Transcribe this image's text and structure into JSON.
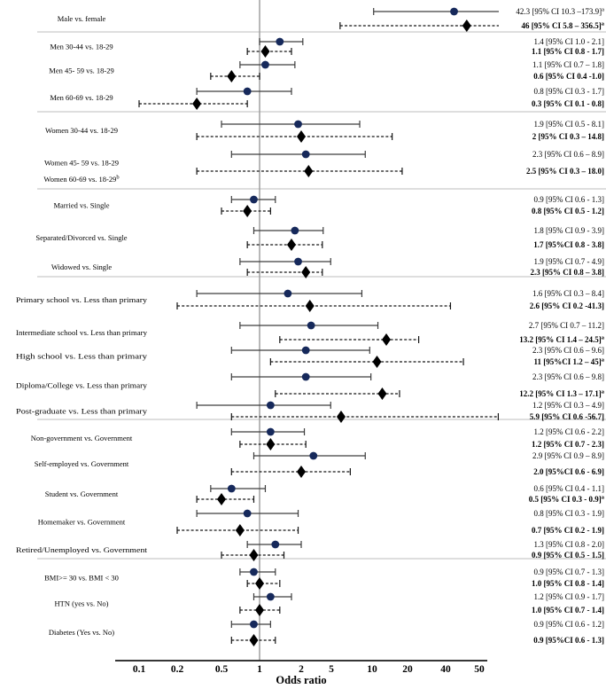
{
  "chart_data": {
    "type": "forest",
    "title": "",
    "xlabel": "Odds ratio",
    "x_scale": "log",
    "x_range": [
      0.1,
      50
    ],
    "x_tick_labels": [
      "0.1",
      "0.2",
      "0.5",
      "1",
      "2",
      "5",
      "10",
      "20",
      "40",
      "50"
    ],
    "reference_value": 1,
    "legend": "none",
    "grid": "off",
    "series": [
      {
        "name": "estimate-1",
        "marker": "circle",
        "line": "solid"
      },
      {
        "name": "estimate-2",
        "marker": "diamond",
        "line": "dashed",
        "text_style": "bold"
      }
    ],
    "colors": {
      "circle_marker": "#16295b",
      "diamond_marker": "#000000",
      "solid_ci_line": "#3d3d3d",
      "dashed_ci_line": "#141414",
      "reference_line": "#9a9a9a",
      "separator": "#c9c9c9",
      "axis": "#1a1a1a"
    },
    "groups": [
      {
        "rows": [
          {
            "label": "Male vs. female",
            "solid": {
              "est": 42.3,
              "lo": 10.3,
              "hi": 173.9,
              "text": "42.3 [95% CI 10.3 –173.9]",
              "sup": "a"
            },
            "dashed": {
              "est": 46,
              "lo": 5.8,
              "hi": 356.5,
              "text": "46 [95% CI 5.8 – 356.5]",
              "sup": "a"
            }
          }
        ]
      },
      {
        "rows": [
          {
            "label": "Men 30-44 vs. 18-29",
            "solid": {
              "est": 1.4,
              "lo": 1.0,
              "hi": 2.1,
              "text": "1.4 [95% CI 1.0 - 2.1]"
            },
            "dashed": {
              "est": 1.1,
              "lo": 0.8,
              "hi": 1.7,
              "text": "1.1 [95% CI 0.8 - 1.7]"
            }
          },
          {
            "label": "Men 45- 59 vs. 18-29",
            "solid": {
              "est": 1.1,
              "lo": 0.7,
              "hi": 1.8,
              "text": "1.1 [95% CI 0.7 – 1.8]"
            },
            "dashed": {
              "est": 0.6,
              "lo": 0.4,
              "hi": 1.0,
              "text": "0.6 [95% CI 0.4 -1.0]"
            }
          },
          {
            "label": "Men 60-69 vs. 18-29",
            "solid": {
              "est": 0.8,
              "lo": 0.3,
              "hi": 1.7,
              "text": "0.8 [95% CI 0.3 - 1.7]"
            },
            "dashed": {
              "est": 0.3,
              "lo": 0.1,
              "hi": 0.8,
              "text": "0.3 [95% CI 0.1 - 0.8]"
            }
          }
        ]
      },
      {
        "rows": [
          {
            "label": "Women 30-44 vs. 18-29",
            "solid": {
              "est": 1.9,
              "lo": 0.5,
              "hi": 8.1,
              "text": "1.9 [95% CI 0.5 - 8.1]"
            },
            "dashed": {
              "est": 2,
              "lo": 0.3,
              "hi": 14.8,
              "text": "2 [95% CI 0.3 – 14.8]"
            }
          },
          {
            "label": "Women 45- 59 vs. 18-29",
            "solid": {
              "est": 2.3,
              "lo": 0.6,
              "hi": 8.9,
              "text": "2.3 [95% CI 0.6 – 8.9]"
            },
            "dashed": {
              "est": 2.5,
              "lo": 0.3,
              "hi": 18.0,
              "text": "2.5 [95% CI 0.3 – 18.0]"
            }
          },
          {
            "label": "Women 60-69 vs. 18-29",
            "label_sup": "b"
          }
        ]
      },
      {
        "rows": [
          {
            "label": "Married vs. Single",
            "solid": {
              "est": 0.9,
              "lo": 0.6,
              "hi": 1.3,
              "text": "0.9 [95% CI 0.6 - 1.3]"
            },
            "dashed": {
              "est": 0.8,
              "lo": 0.5,
              "hi": 1.2,
              "text": "0.8 [95% CI 0.5 - 1.2]"
            }
          },
          {
            "label": "Separated/Divorced vs. Single",
            "solid": {
              "est": 1.8,
              "lo": 0.9,
              "hi": 3.9,
              "text": "1.8 [95% CI 0.9 - 3.9]"
            },
            "dashed": {
              "est": 1.7,
              "lo": 0.8,
              "hi": 3.8,
              "text": "1.7 [95%CI 0.8 - 3.8]"
            }
          },
          {
            "label": "Widowed vs. Single",
            "solid": {
              "est": 1.9,
              "lo": 0.7,
              "hi": 4.9,
              "text": "1.9 [95% CI 0.7 - 4.9]"
            },
            "dashed": {
              "est": 2.3,
              "lo": 0.8,
              "hi": 3.8,
              "text": "2.3 [95% CI 0.8 – 3.8]"
            }
          }
        ]
      },
      {
        "rows": [
          {
            "label": "Primary school vs. Less than primary",
            "solid": {
              "est": 1.6,
              "lo": 0.3,
              "hi": 8.4,
              "text": "1.6 [95% CI 0.3 – 8.4]"
            },
            "dashed": {
              "est": 2.6,
              "lo": 0.2,
              "hi": 41.3,
              "text": "2.6 [95% CI 0.2 -41.3]"
            }
          },
          {
            "label": "Intermediate school vs. Less than primary",
            "solid": {
              "est": 2.7,
              "lo": 0.7,
              "hi": 11.2,
              "text": "2.7 [95% CI 0.7 – 11.2]"
            },
            "dashed": {
              "est": 13.2,
              "lo": 1.4,
              "hi": 24.5,
              "text": "13.2 [95% CI 1.4 – 24.5]",
              "sup": "a"
            }
          },
          {
            "label": "High school vs. Less than primary",
            "solid": {
              "est": 2.3,
              "lo": 0.6,
              "hi": 9.6,
              "text": "2.3 [95% CI 0.6 – 9.6]"
            },
            "dashed": {
              "est": 11,
              "lo": 1.2,
              "hi": 45,
              "text": "11 [95%CI 1.2 – 45]",
              "sup": "a"
            }
          },
          {
            "label": "Diploma/College vs. Less than primary",
            "solid": {
              "est": 2.3,
              "lo": 0.6,
              "hi": 9.8,
              "text": "2.3 [95% CI 0.6 – 9.8]"
            },
            "dashed": {
              "est": 12.2,
              "lo": 1.3,
              "hi": 17.1,
              "text": "12.2 [95% CI 1.3 – 17.1]",
              "sup": "a"
            }
          },
          {
            "label": "Post-graduate vs. Less than primary",
            "solid": {
              "est": 1.2,
              "lo": 0.3,
              "hi": 4.9,
              "text": "1.2 [95% CI 0.3 – 4.9]"
            },
            "dashed": {
              "est": 5.9,
              "lo": 0.6,
              "hi": 56.7,
              "text": "5.9 [95% CI 0.6 -56.7]"
            }
          }
        ]
      },
      {
        "rows": [
          {
            "label": "Non-government vs. Government",
            "solid": {
              "est": 1.2,
              "lo": 0.6,
              "hi": 2.2,
              "text": "1.2 [95% CI 0.6 - 2.2]"
            },
            "dashed": {
              "est": 1.2,
              "lo": 0.7,
              "hi": 2.3,
              "text": "1.2 [95% CI 0.7 - 2.3]"
            }
          },
          {
            "label": "Self-employed vs. Government",
            "solid": {
              "est": 2.9,
              "lo": 0.9,
              "hi": 8.9,
              "text": "2.9 [95% CI 0.9 – 8.9]"
            },
            "dashed": {
              "est": 2.0,
              "lo": 0.6,
              "hi": 6.9,
              "text": "2.0 [95%CI 0.6 - 6.9]"
            }
          },
          {
            "label": "Student vs. Government",
            "solid": {
              "est": 0.6,
              "lo": 0.4,
              "hi": 1.1,
              "text": "0.6 [95% CI 0.4 - 1.1]"
            },
            "dashed": {
              "est": 0.5,
              "lo": 0.3,
              "hi": 0.9,
              "text": "0.5 [95% CI 0.3 - 0.9]",
              "sup": "a"
            }
          },
          {
            "label": "Homemaker vs. Government",
            "solid": {
              "est": 0.8,
              "lo": 0.3,
              "hi": 1.9,
              "text": "0.8 [95% CI 0.3 - 1.9]"
            },
            "dashed": {
              "est": 0.7,
              "lo": 0.2,
              "hi": 1.9,
              "text": "0.7 [95% CI 0.2 - 1.9]"
            }
          },
          {
            "label": "Retired/Unemployed vs. Government",
            "solid": {
              "est": 1.3,
              "lo": 0.8,
              "hi": 2.0,
              "text": "1.3 [95% CI 0.8 - 2.0]"
            },
            "dashed": {
              "est": 0.9,
              "lo": 0.5,
              "hi": 1.5,
              "text": "0.9 [95% CI 0.5 - 1.5]"
            }
          }
        ]
      },
      {
        "rows": [
          {
            "label": "BMI>= 30 vs. BMI < 30",
            "solid": {
              "est": 0.9,
              "lo": 0.7,
              "hi": 1.3,
              "text": "0.9 [95% CI 0.7 - 1.3]"
            },
            "dashed": {
              "est": 1.0,
              "lo": 0.8,
              "hi": 1.4,
              "text": "1.0 [95% CI 0.8 - 1.4]"
            }
          },
          {
            "label": "HTN (yes vs. No)",
            "solid": {
              "est": 1.2,
              "lo": 0.9,
              "hi": 1.7,
              "text": "1.2 [95% CI 0.9 - 1.7]"
            },
            "dashed": {
              "est": 1.0,
              "lo": 0.7,
              "hi": 1.4,
              "text": "1.0 [95% CI 0.7 - 1.4]"
            }
          },
          {
            "label": "Diabetes (Yes vs. No)",
            "solid": {
              "est": 0.9,
              "lo": 0.6,
              "hi": 1.2,
              "text": "0.9 [95% CI 0.6 - 1.2]"
            },
            "dashed": {
              "est": 0.9,
              "lo": 0.6,
              "hi": 1.3,
              "text": "0.9 [95%CI 0.6 - 1.3]"
            }
          }
        ]
      }
    ]
  }
}
